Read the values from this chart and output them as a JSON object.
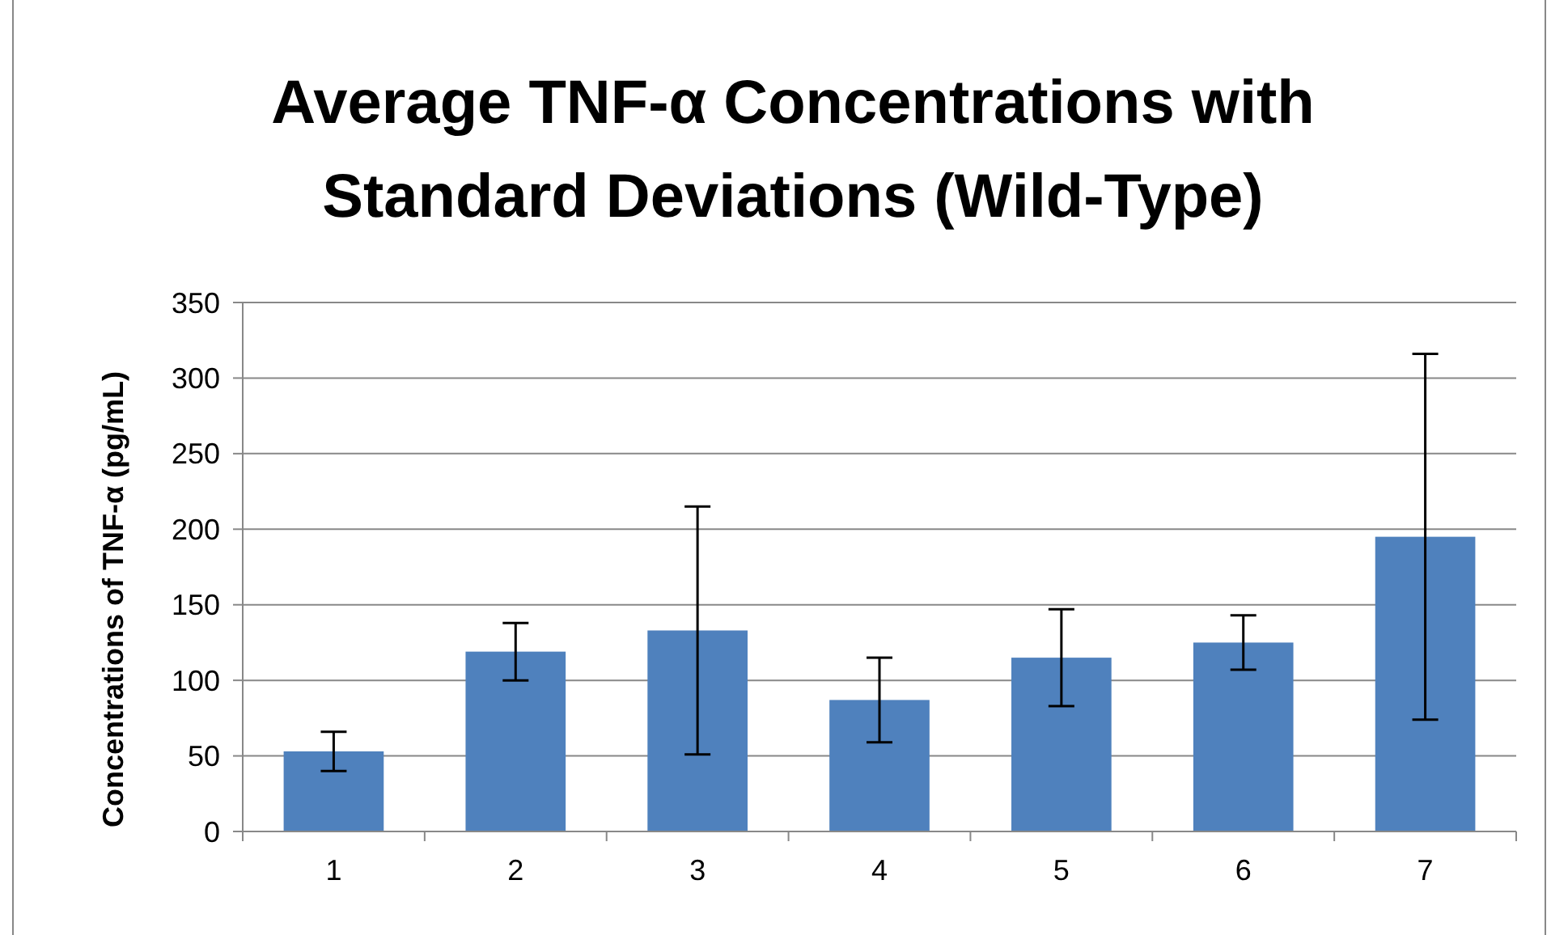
{
  "chart_data": {
    "type": "bar",
    "title": "Average TNF-α Concentrations with\nStandard Deviations (Wild-Type)",
    "ylabel": "Concentrations of TNF-α (pg/mL)",
    "categories": [
      "1",
      "2",
      "3",
      "4",
      "5",
      "6",
      "7"
    ],
    "values": [
      53,
      119,
      133,
      87,
      115,
      125,
      195
    ],
    "color": "#4f81bd",
    "errors": [
      13,
      19,
      82,
      28,
      32,
      18,
      121
    ],
    "ylim": [
      0,
      350
    ],
    "yticks": [
      0,
      50,
      100,
      150,
      200,
      250,
      300,
      350
    ],
    "grid": "y"
  }
}
